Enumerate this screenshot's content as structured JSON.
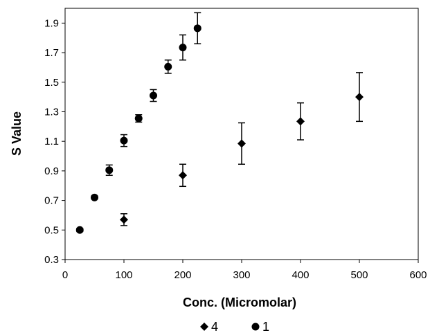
{
  "chart_data": {
    "type": "scatter",
    "title": "",
    "xlabel": "Conc.  (Micromolar)",
    "ylabel": "S Value",
    "xlim": [
      0,
      600
    ],
    "ylim": [
      0.3,
      2.0
    ],
    "x_ticks": [
      0,
      100,
      200,
      300,
      400,
      500,
      600
    ],
    "y_ticks": [
      0.3,
      0.5,
      0.7,
      0.9,
      1.1,
      1.3,
      1.5,
      1.7,
      1.9
    ],
    "grid": false,
    "legend_position": "bottom",
    "series": [
      {
        "name": "4",
        "marker": "diamond",
        "color": "#000000",
        "points": [
          {
            "x": 100,
            "y": 0.57,
            "err": 0.04
          },
          {
            "x": 200,
            "y": 0.87,
            "err": 0.075
          },
          {
            "x": 300,
            "y": 1.085,
            "err": 0.14
          },
          {
            "x": 400,
            "y": 1.235,
            "err": 0.125
          },
          {
            "x": 500,
            "y": 1.4,
            "err": 0.165
          }
        ]
      },
      {
        "name": "1",
        "marker": "circle",
        "color": "#000000",
        "points": [
          {
            "x": 25,
            "y": 0.5,
            "err": 0.01
          },
          {
            "x": 50,
            "y": 0.72,
            "err": 0.01
          },
          {
            "x": 75,
            "y": 0.905,
            "err": 0.035
          },
          {
            "x": 100,
            "y": 1.105,
            "err": 0.04
          },
          {
            "x": 125,
            "y": 1.255,
            "err": 0.025
          },
          {
            "x": 150,
            "y": 1.41,
            "err": 0.04
          },
          {
            "x": 175,
            "y": 1.605,
            "err": 0.045
          },
          {
            "x": 200,
            "y": 1.735,
            "err": 0.085
          },
          {
            "x": 225,
            "y": 1.865,
            "err": 0.105
          }
        ]
      }
    ]
  }
}
